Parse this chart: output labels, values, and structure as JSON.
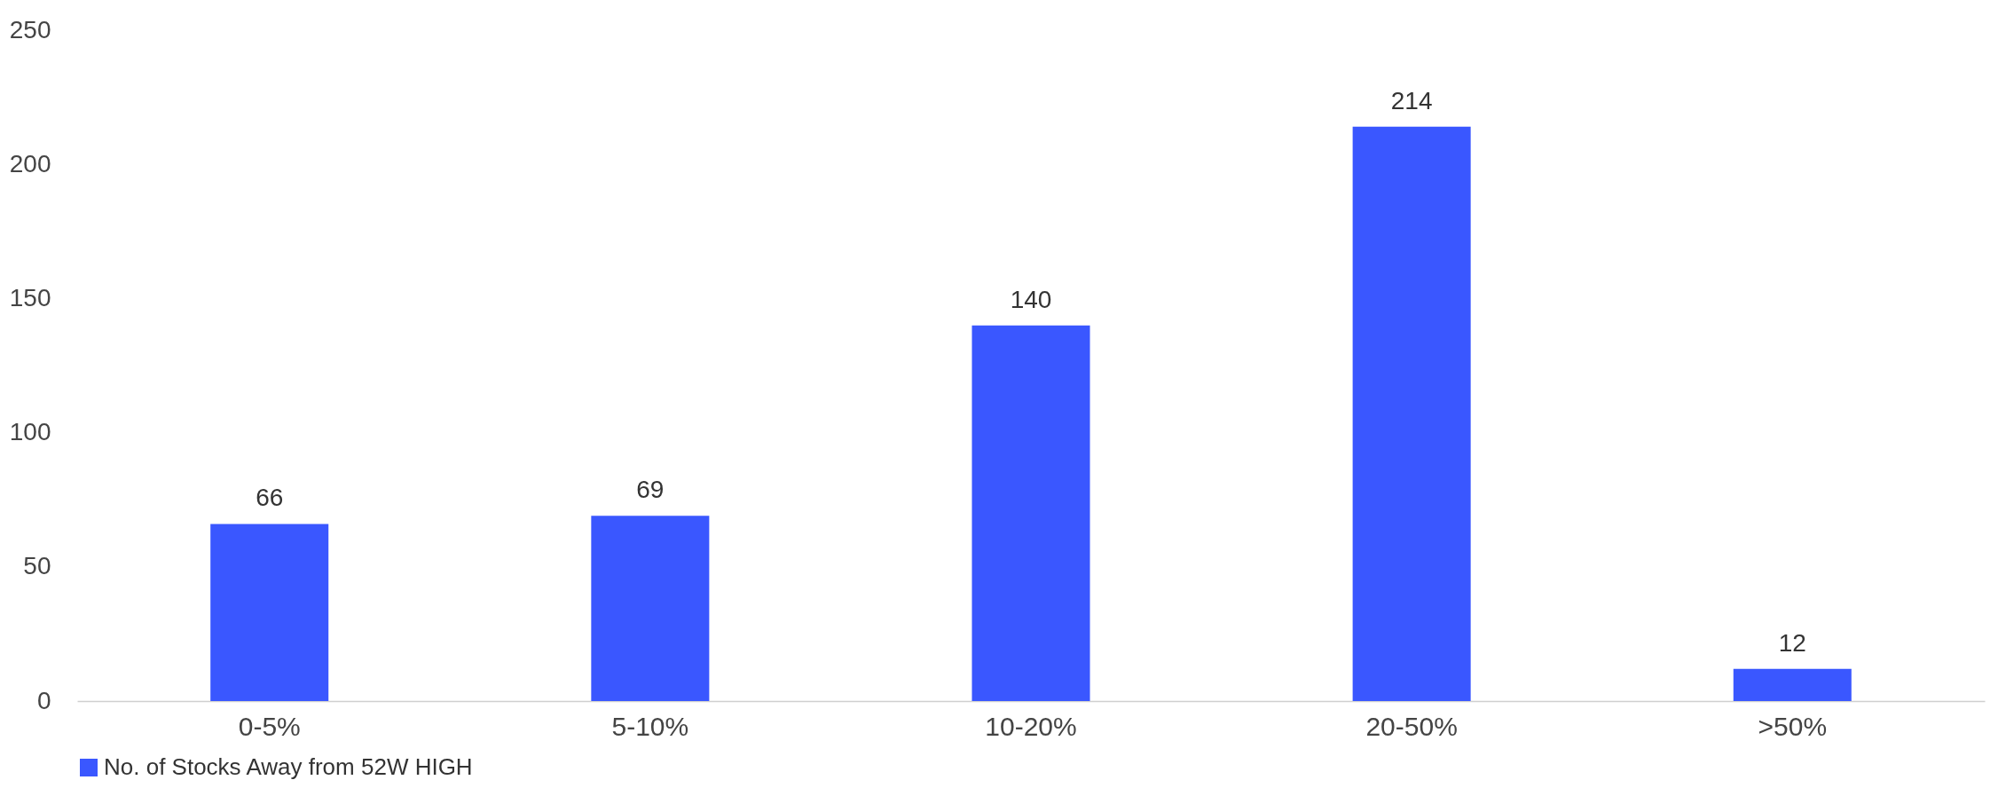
{
  "chart_data": {
    "type": "bar",
    "categories": [
      "0-5%",
      "5-10%",
      "10-20%",
      "20-50%",
      ">50%"
    ],
    "series": [
      {
        "name": "No. of Stocks Away from 52W HIGH",
        "color": "#3a57ff",
        "values": [
          66,
          69,
          140,
          214,
          12
        ]
      }
    ],
    "ylim": [
      0,
      250
    ],
    "yticks": [
      0,
      50,
      100,
      150,
      200,
      250
    ],
    "data_labels": true,
    "legend": "bottom"
  }
}
